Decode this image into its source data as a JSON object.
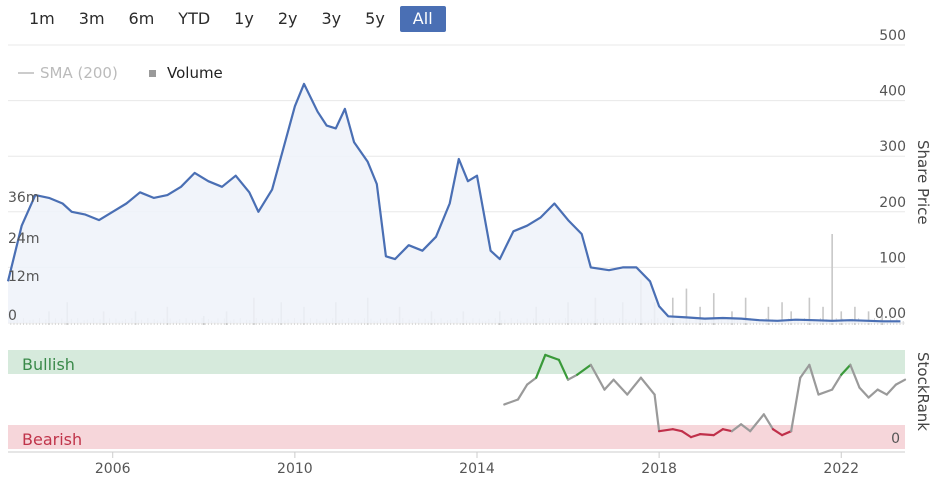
{
  "range_selector": {
    "buttons": [
      "1m",
      "3m",
      "6m",
      "YTD",
      "1y",
      "2y",
      "3y",
      "5y",
      "All"
    ],
    "active": "All"
  },
  "legend": {
    "sma": "SMA (200)",
    "volume": "Volume"
  },
  "colors": {
    "price_line": "#4a6fb4",
    "price_fill": "#eef2f9",
    "volume_bar": "#c8c8c8",
    "bullish_band": "#d6eadc",
    "bearish_band": "#f6d6da",
    "bullish_text": "#3a8a4a",
    "bearish_text": "#c0344a",
    "rank_gray": "#9a9a9a",
    "rank_green": "#3a9a3a",
    "rank_red": "#c0304a",
    "grid": "#e8e8e8",
    "axis_text": "#555555"
  },
  "chart_data": [
    {
      "type": "line",
      "title": "",
      "ylabel": "Share Price",
      "ylim": [
        0,
        500
      ],
      "yticks": [
        "500",
        "400",
        "300",
        "200",
        "100",
        "0.00"
      ],
      "xlim": [
        2003.7,
        2023.4
      ],
      "xticks": [
        "2006",
        "2010",
        "2014",
        "2018",
        "2022"
      ],
      "series": [
        {
          "name": "Share Price",
          "points": [
            [
              2003.7,
              75
            ],
            [
              2004.0,
              175
            ],
            [
              2004.3,
              230
            ],
            [
              2004.6,
              225
            ],
            [
              2004.9,
              215
            ],
            [
              2005.1,
              200
            ],
            [
              2005.4,
              195
            ],
            [
              2005.7,
              185
            ],
            [
              2006.0,
              200
            ],
            [
              2006.3,
              215
            ],
            [
              2006.6,
              235
            ],
            [
              2006.9,
              225
            ],
            [
              2007.2,
              230
            ],
            [
              2007.5,
              245
            ],
            [
              2007.8,
              270
            ],
            [
              2008.1,
              255
            ],
            [
              2008.4,
              245
            ],
            [
              2008.7,
              265
            ],
            [
              2009.0,
              235
            ],
            [
              2009.2,
              200
            ],
            [
              2009.5,
              240
            ],
            [
              2009.8,
              330
            ],
            [
              2010.0,
              390
            ],
            [
              2010.2,
              430
            ],
            [
              2010.5,
              380
            ],
            [
              2010.7,
              355
            ],
            [
              2010.9,
              350
            ],
            [
              2011.1,
              385
            ],
            [
              2011.3,
              325
            ],
            [
              2011.6,
              290
            ],
            [
              2011.8,
              250
            ],
            [
              2012.0,
              120
            ],
            [
              2012.2,
              115
            ],
            [
              2012.5,
              140
            ],
            [
              2012.8,
              130
            ],
            [
              2013.1,
              155
            ],
            [
              2013.4,
              215
            ],
            [
              2013.6,
              295
            ],
            [
              2013.8,
              255
            ],
            [
              2014.0,
              265
            ],
            [
              2014.3,
              130
            ],
            [
              2014.5,
              115
            ],
            [
              2014.8,
              165
            ],
            [
              2015.1,
              175
            ],
            [
              2015.4,
              190
            ],
            [
              2015.7,
              215
            ],
            [
              2016.0,
              185
            ],
            [
              2016.3,
              160
            ],
            [
              2016.5,
              100
            ],
            [
              2016.9,
              95
            ],
            [
              2017.2,
              100
            ],
            [
              2017.5,
              100
            ],
            [
              2017.8,
              75
            ],
            [
              2018.0,
              30
            ],
            [
              2018.2,
              12
            ],
            [
              2018.6,
              10
            ],
            [
              2019.0,
              8
            ],
            [
              2019.4,
              9
            ],
            [
              2019.8,
              8
            ],
            [
              2020.2,
              5
            ],
            [
              2020.6,
              4
            ],
            [
              2021.0,
              6
            ],
            [
              2021.4,
              5
            ],
            [
              2021.8,
              4
            ],
            [
              2022.2,
              5
            ],
            [
              2022.6,
              4
            ],
            [
              2022.9,
              3
            ],
            [
              2023.3,
              3
            ]
          ]
        }
      ]
    },
    {
      "type": "bar",
      "ylabel": "",
      "yticks": [
        "36m",
        "24m",
        "12m",
        "0"
      ],
      "ylim": [
        0,
        48
      ],
      "series": [
        {
          "name": "Volume",
          "points": [
            [
              2004.6,
              3
            ],
            [
              2005.0,
              5
            ],
            [
              2005.8,
              3
            ],
            [
              2006.5,
              3
            ],
            [
              2007.2,
              4
            ],
            [
              2008.0,
              2
            ],
            [
              2008.5,
              3
            ],
            [
              2009.1,
              6
            ],
            [
              2009.7,
              5
            ],
            [
              2010.2,
              4
            ],
            [
              2010.9,
              5
            ],
            [
              2011.6,
              6
            ],
            [
              2012.3,
              4
            ],
            [
              2013.0,
              3
            ],
            [
              2013.7,
              3
            ],
            [
              2014.5,
              3
            ],
            [
              2015.3,
              4
            ],
            [
              2016.0,
              5
            ],
            [
              2016.6,
              6
            ],
            [
              2017.2,
              5
            ],
            [
              2017.6,
              10
            ],
            [
              2017.9,
              5
            ],
            [
              2018.3,
              6
            ],
            [
              2018.6,
              8
            ],
            [
              2018.9,
              4
            ],
            [
              2019.2,
              7
            ],
            [
              2019.6,
              3
            ],
            [
              2019.9,
              6
            ],
            [
              2020.4,
              4
            ],
            [
              2020.7,
              5
            ],
            [
              2020.9,
              3
            ],
            [
              2021.3,
              6
            ],
            [
              2021.6,
              4
            ],
            [
              2021.8,
              20
            ],
            [
              2022.0,
              3
            ],
            [
              2022.3,
              4
            ],
            [
              2022.6,
              3
            ],
            [
              2022.9,
              2
            ]
          ]
        }
      ]
    },
    {
      "type": "line",
      "title": "",
      "ylabel": "StockRank",
      "yticks": [
        "0"
      ],
      "ylim": [
        0,
        100
      ],
      "bands": [
        {
          "label": "Bullish",
          "from": 80,
          "to": 100
        },
        {
          "label": "Bearish",
          "from": 0,
          "to": 20
        }
      ],
      "series": [
        {
          "name": "StockRank",
          "points": [
            [
              2014.6,
              45
            ],
            [
              2014.9,
              50
            ],
            [
              2015.1,
              65
            ],
            [
              2015.3,
              72
            ],
            [
              2015.5,
              95
            ],
            [
              2015.8,
              90
            ],
            [
              2016.0,
              70
            ],
            [
              2016.2,
              75
            ],
            [
              2016.5,
              85
            ],
            [
              2016.8,
              60
            ],
            [
              2017.0,
              70
            ],
            [
              2017.3,
              55
            ],
            [
              2017.6,
              72
            ],
            [
              2017.9,
              55
            ],
            [
              2018.0,
              18
            ],
            [
              2018.3,
              20
            ],
            [
              2018.5,
              18
            ],
            [
              2018.7,
              12
            ],
            [
              2018.9,
              15
            ],
            [
              2019.2,
              14
            ],
            [
              2019.4,
              20
            ],
            [
              2019.6,
              18
            ],
            [
              2019.8,
              25
            ],
            [
              2020.0,
              18
            ],
            [
              2020.3,
              35
            ],
            [
              2020.5,
              20
            ],
            [
              2020.7,
              14
            ],
            [
              2020.9,
              18
            ],
            [
              2021.1,
              72
            ],
            [
              2021.3,
              85
            ],
            [
              2021.5,
              55
            ],
            [
              2021.8,
              60
            ],
            [
              2022.0,
              75
            ],
            [
              2022.2,
              85
            ],
            [
              2022.4,
              62
            ],
            [
              2022.6,
              52
            ],
            [
              2022.8,
              60
            ],
            [
              2023.0,
              55
            ],
            [
              2023.2,
              65
            ],
            [
              2023.4,
              70
            ]
          ]
        }
      ]
    }
  ]
}
